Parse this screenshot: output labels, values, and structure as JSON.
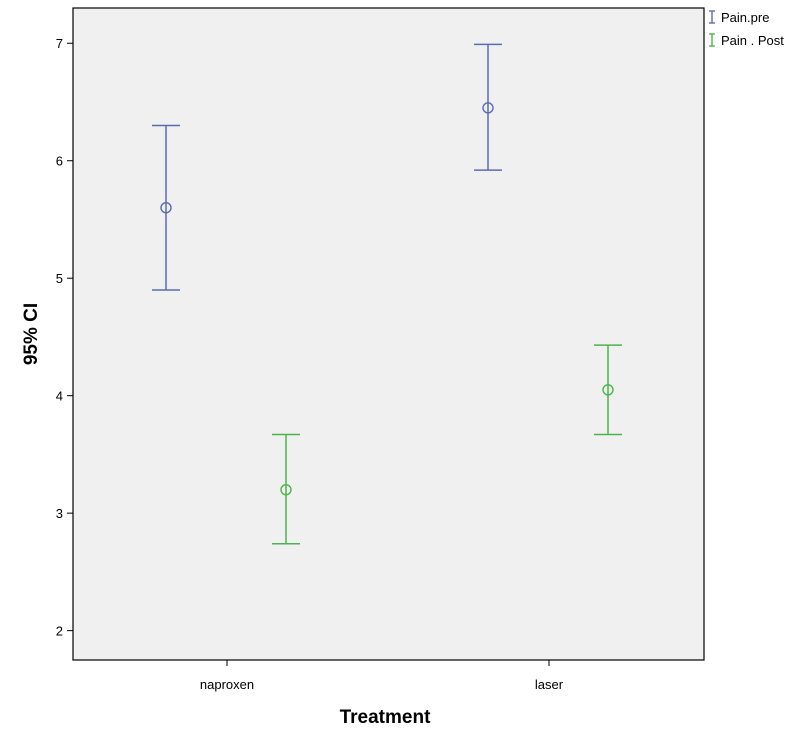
{
  "chart_data": {
    "type": "errorbar",
    "title": "",
    "xlabel": "Treatment",
    "ylabel": "95% CI",
    "categories": [
      "naproxen",
      "laser"
    ],
    "ylim": [
      1.75,
      7.3
    ],
    "yticks": [
      2,
      3,
      4,
      5,
      6,
      7
    ],
    "series": [
      {
        "name": "Pain.pre",
        "color": "#5b6bb3",
        "points": [
          {
            "category": "naproxen",
            "mean": 5.6,
            "lower": 4.9,
            "upper": 6.3
          },
          {
            "category": "laser",
            "mean": 6.45,
            "lower": 5.92,
            "upper": 6.99
          }
        ]
      },
      {
        "name": "Pain . Post",
        "color": "#4bb54b",
        "points": [
          {
            "category": "naproxen",
            "mean": 3.2,
            "lower": 2.74,
            "upper": 3.67
          },
          {
            "category": "laser",
            "mean": 4.05,
            "lower": 3.67,
            "upper": 4.43
          }
        ]
      }
    ],
    "legend_position": "top-right",
    "background": "#f0f0f0"
  }
}
